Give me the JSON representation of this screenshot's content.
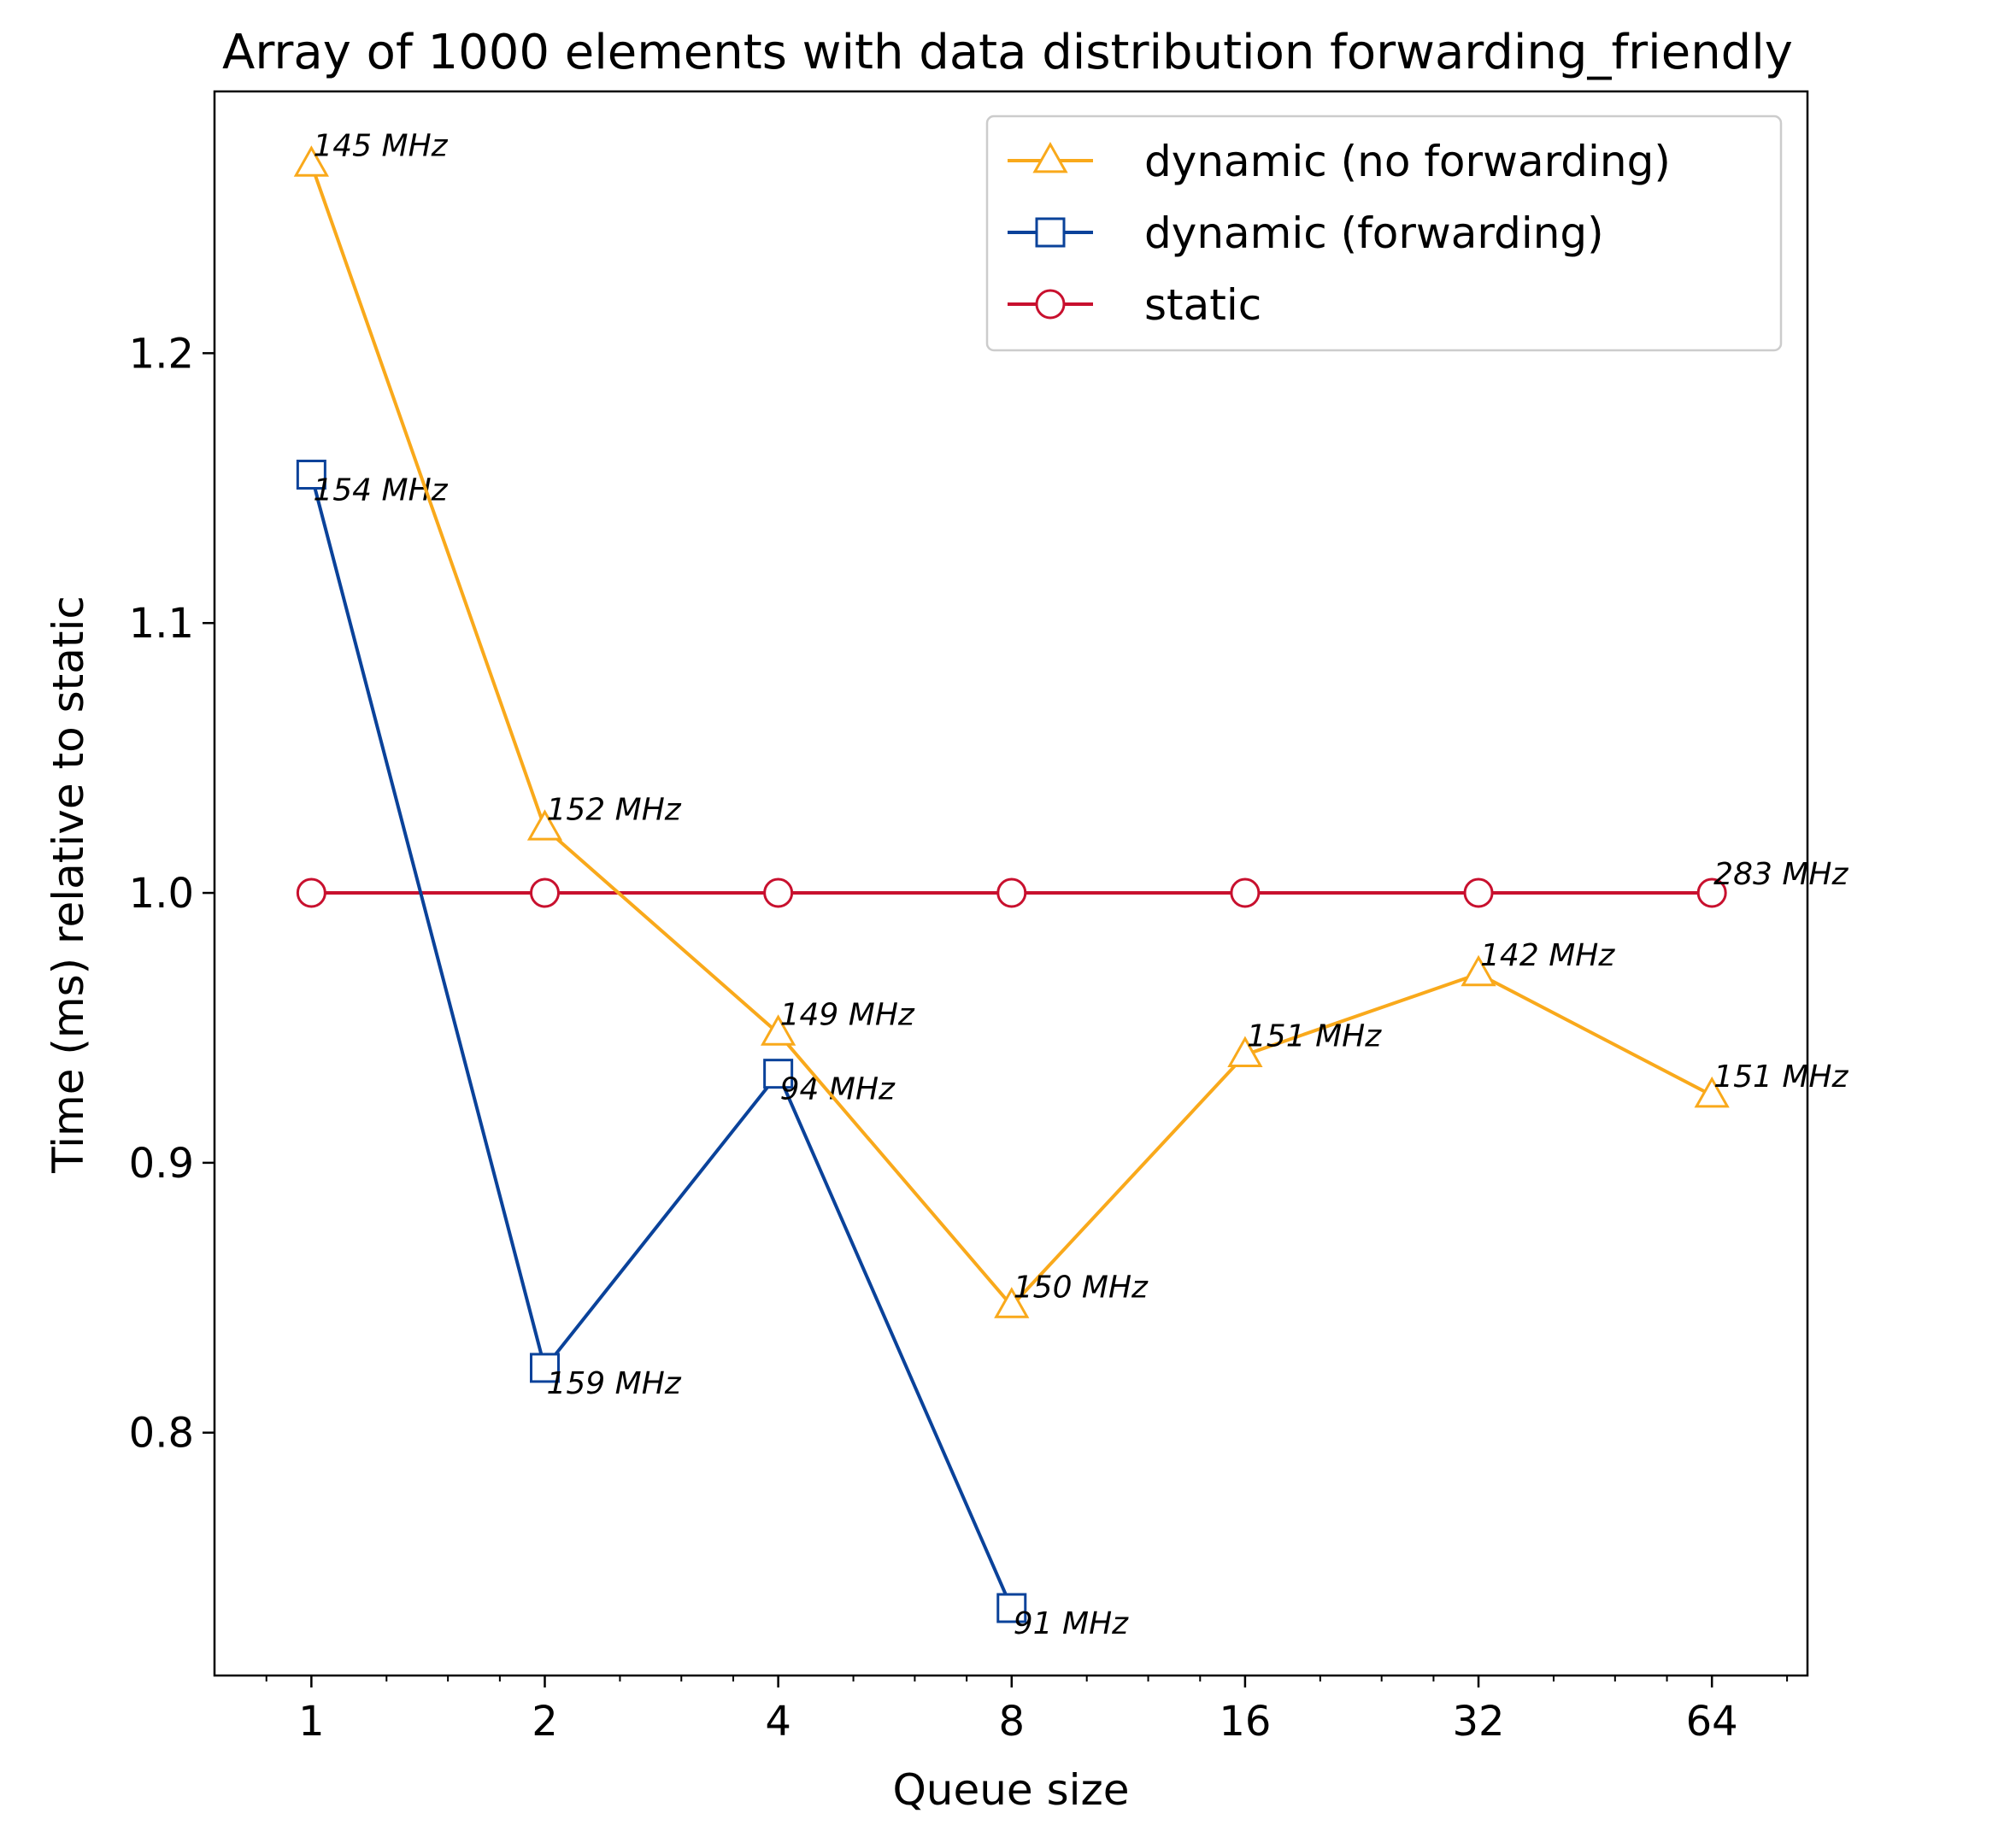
{
  "chart_data": {
    "type": "line",
    "title": "Array of 1000 elements with data distribution forwarding_friendly",
    "xlabel": "Queue size",
    "ylabel": "Time (ms) relative to static",
    "x_scale": "log2",
    "x": [
      1,
      2,
      4,
      8,
      16,
      32,
      64
    ],
    "x_tick_labels": [
      "1",
      "2",
      "4",
      "8",
      "16",
      "32",
      "64"
    ],
    "xlim": [
      0.75,
      85
    ],
    "ylim": [
      0.71,
      1.297
    ],
    "y_ticks": [
      0.8,
      0.9,
      1.0,
      1.1,
      1.2
    ],
    "y_tick_labels": [
      "0.8",
      "0.9",
      "1.0",
      "1.1",
      "1.2"
    ],
    "grid": false,
    "legend_position": "upper right",
    "series": [
      {
        "name": "dynamic (no forwarding)",
        "color": "#f9a91b",
        "marker": "triangle",
        "values": [
          1.27,
          1.024,
          0.948,
          0.847,
          0.94,
          0.97,
          0.925
        ],
        "annotations": [
          "145 MHz",
          "152 MHz",
          "149 MHz",
          "150 MHz",
          "151 MHz",
          "142 MHz",
          "151 MHz"
        ]
      },
      {
        "name": "dynamic (forwarding)",
        "color": "#0a429a",
        "marker": "square",
        "values": [
          1.155,
          0.824,
          0.933,
          0.735,
          null,
          null,
          null
        ],
        "annotations": [
          "154 MHz",
          "159 MHz",
          "94 MHz",
          "91 MHz",
          null,
          null,
          null
        ]
      },
      {
        "name": "static",
        "color": "#c8102e",
        "marker": "circle",
        "values": [
          1.0,
          1.0,
          1.0,
          1.0,
          1.0,
          1.0,
          1.0
        ],
        "annotations": [
          null,
          null,
          null,
          null,
          null,
          null,
          "283 MHz"
        ]
      }
    ]
  }
}
